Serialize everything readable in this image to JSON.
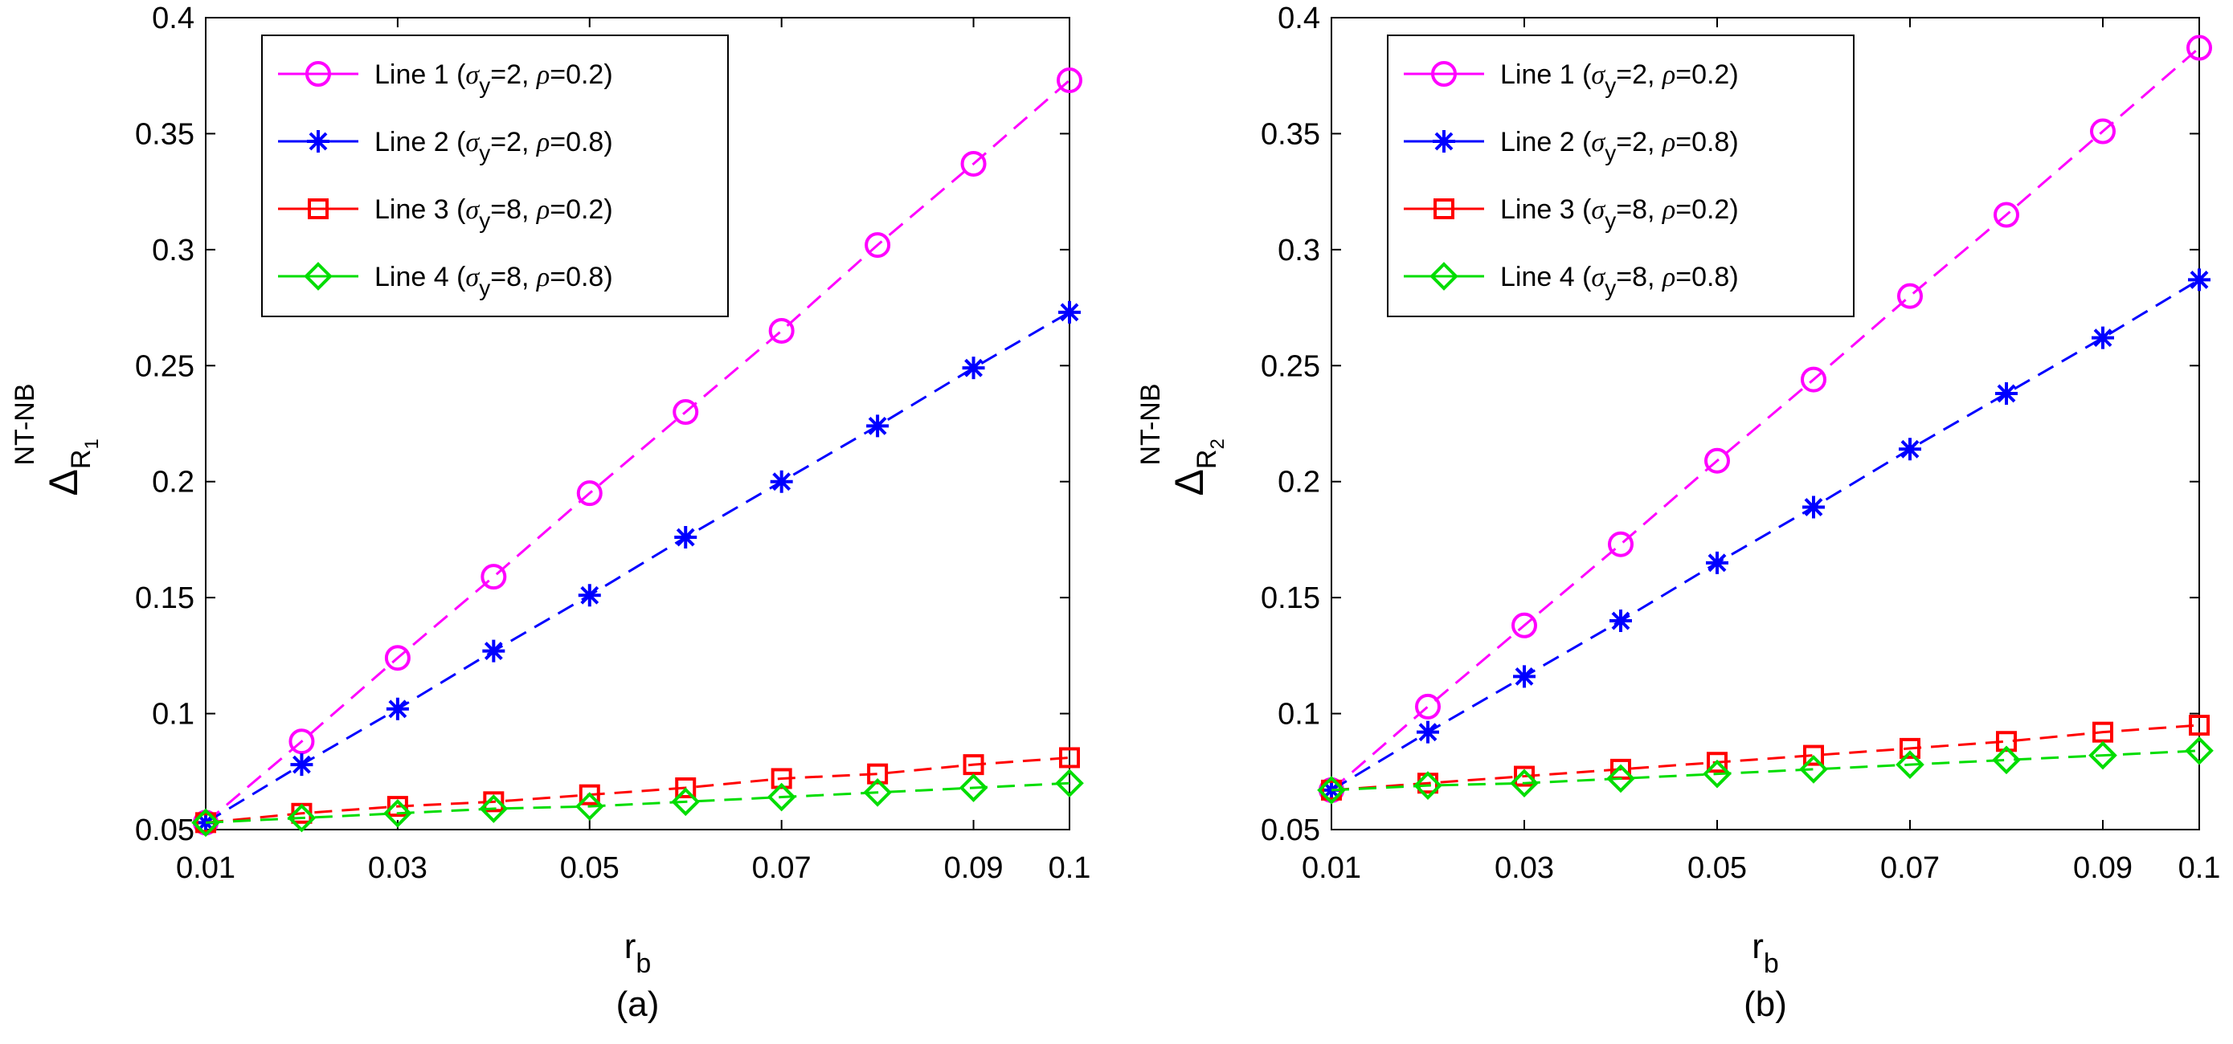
{
  "chart_data": [
    {
      "type": "line",
      "caption": "(a)",
      "xlabel_main": "r",
      "xlabel_sub": "b",
      "ylabel_main": "Δ",
      "ylabel_sup": "NT-NB",
      "ylabel_sub": "R",
      "ylabel_subsub": "1",
      "x": [
        0.01,
        0.02,
        0.03,
        0.04,
        0.05,
        0.06,
        0.07,
        0.08,
        0.09,
        0.1
      ],
      "xlim": [
        0.01,
        0.1
      ],
      "ylim": [
        0.05,
        0.4
      ],
      "xticks": [
        "0.01",
        "0.03",
        "0.05",
        "0.07",
        "0.09",
        "0.1"
      ],
      "yticks": [
        "0.05",
        "0.1",
        "0.15",
        "0.2",
        "0.25",
        "0.3",
        "0.35",
        "0.4"
      ],
      "legend_position": "top-left",
      "series": [
        {
          "name": "Line 1",
          "sigma": "2",
          "rho": "0.2",
          "color": "#ff00ff",
          "marker": "circle",
          "values": [
            0.053,
            0.088,
            0.124,
            0.159,
            0.195,
            0.23,
            0.265,
            0.302,
            0.337,
            0.373
          ]
        },
        {
          "name": "Line 2",
          "sigma": "2",
          "rho": "0.8",
          "color": "#0000ff",
          "marker": "asterisk",
          "values": [
            0.053,
            0.078,
            0.102,
            0.127,
            0.151,
            0.176,
            0.2,
            0.224,
            0.249,
            0.273
          ]
        },
        {
          "name": "Line 3",
          "sigma": "8",
          "rho": "0.2",
          "color": "#ff0000",
          "marker": "square",
          "values": [
            0.053,
            0.057,
            0.06,
            0.062,
            0.065,
            0.068,
            0.072,
            0.074,
            0.078,
            0.081
          ]
        },
        {
          "name": "Line 4",
          "sigma": "8",
          "rho": "0.8",
          "color": "#00dd00",
          "marker": "diamond",
          "values": [
            0.053,
            0.055,
            0.057,
            0.059,
            0.06,
            0.062,
            0.064,
            0.066,
            0.068,
            0.07
          ]
        }
      ]
    },
    {
      "type": "line",
      "caption": "(b)",
      "xlabel_main": "r",
      "xlabel_sub": "b",
      "ylabel_main": "Δ",
      "ylabel_sup": "NT-NB",
      "ylabel_sub": "R",
      "ylabel_subsub": "2",
      "x": [
        0.01,
        0.02,
        0.03,
        0.04,
        0.05,
        0.06,
        0.07,
        0.08,
        0.09,
        0.1
      ],
      "xlim": [
        0.01,
        0.1
      ],
      "ylim": [
        0.05,
        0.4
      ],
      "xticks": [
        "0.01",
        "0.03",
        "0.05",
        "0.07",
        "0.09",
        "0.1"
      ],
      "yticks": [
        "0.05",
        "0.1",
        "0.15",
        "0.2",
        "0.25",
        "0.3",
        "0.35",
        "0.4"
      ],
      "legend_position": "top-left",
      "series": [
        {
          "name": "Line 1",
          "sigma": "2",
          "rho": "0.2",
          "color": "#ff00ff",
          "marker": "circle",
          "values": [
            0.067,
            0.103,
            0.138,
            0.173,
            0.209,
            0.244,
            0.28,
            0.315,
            0.351,
            0.387
          ]
        },
        {
          "name": "Line 2",
          "sigma": "2",
          "rho": "0.8",
          "color": "#0000ff",
          "marker": "asterisk",
          "values": [
            0.067,
            0.092,
            0.116,
            0.14,
            0.165,
            0.189,
            0.214,
            0.238,
            0.262,
            0.287
          ]
        },
        {
          "name": "Line 3",
          "sigma": "8",
          "rho": "0.2",
          "color": "#ff0000",
          "marker": "square",
          "values": [
            0.067,
            0.07,
            0.073,
            0.076,
            0.079,
            0.082,
            0.085,
            0.088,
            0.092,
            0.095
          ]
        },
        {
          "name": "Line 4",
          "sigma": "8",
          "rho": "0.8",
          "color": "#00dd00",
          "marker": "diamond",
          "values": [
            0.067,
            0.069,
            0.07,
            0.072,
            0.074,
            0.076,
            0.078,
            0.08,
            0.082,
            0.084
          ]
        }
      ]
    }
  ]
}
